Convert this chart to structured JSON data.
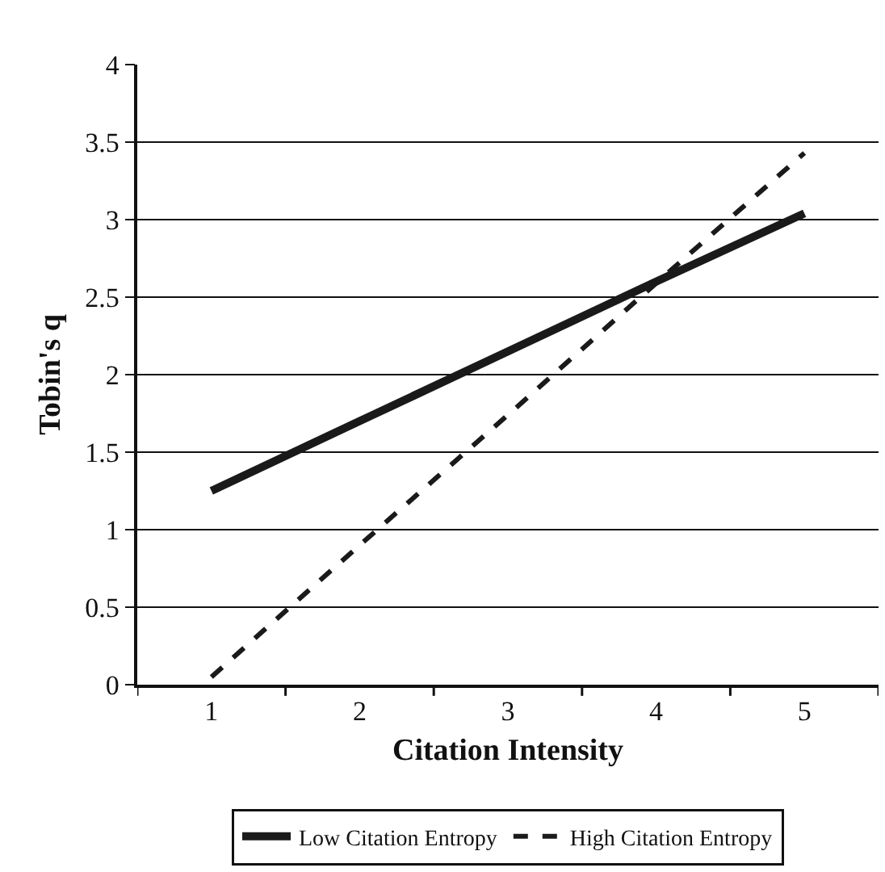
{
  "chart_data": {
    "type": "line",
    "xlabel": "Citation Intensity",
    "ylabel": "Tobin's q",
    "categories": [
      "1",
      "2",
      "3",
      "4",
      "5"
    ],
    "series": [
      {
        "name": "Low Citation Entropy",
        "color": "#1a1a1a",
        "line_style": "solid",
        "values": [
          1.25,
          1.7,
          2.15,
          2.6,
          3.04
        ]
      },
      {
        "name": "High Citation Entropy",
        "color": "#1a1a1a",
        "line_style": "dashed",
        "values": [
          0.05,
          0.9,
          1.74,
          2.59,
          3.43
        ]
      }
    ],
    "ylim": [
      0,
      4
    ],
    "yticks": [
      0,
      0.5,
      1,
      1.5,
      2,
      2.5,
      3,
      3.5,
      4
    ],
    "grid": "y",
    "legend": "bottom",
    "marker": "none"
  }
}
